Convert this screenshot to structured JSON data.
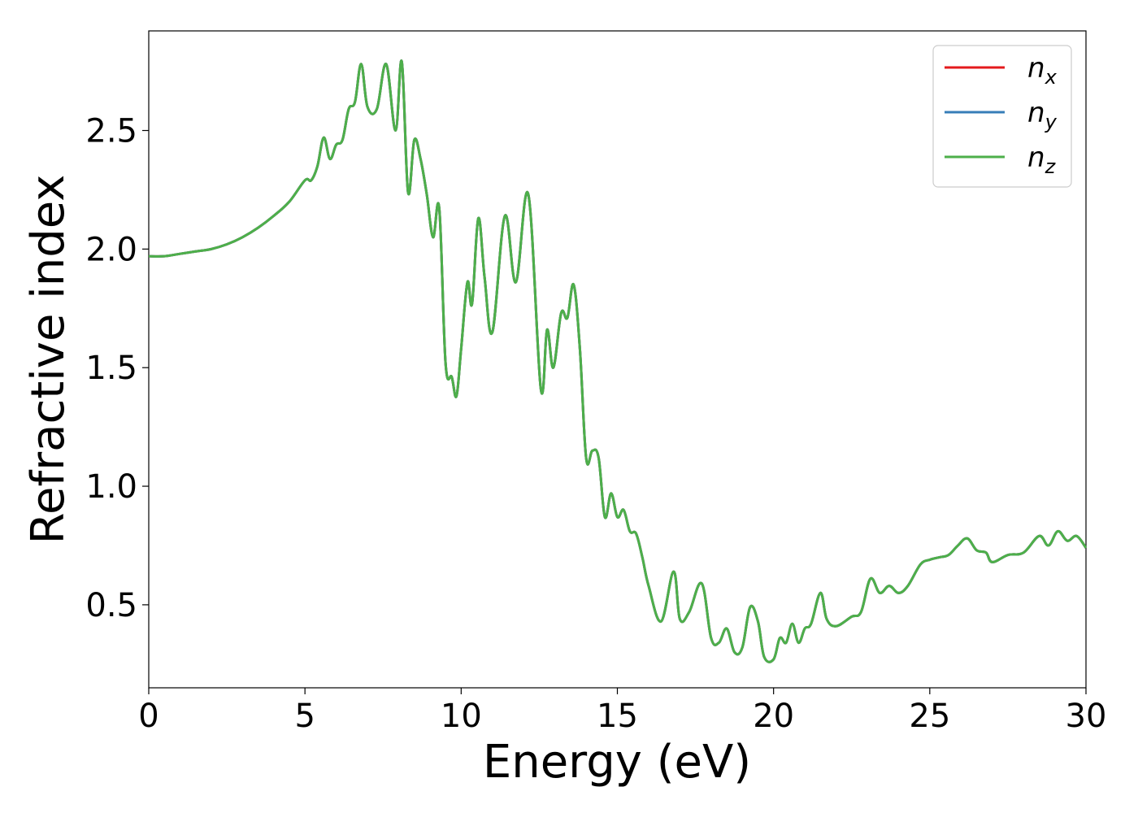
{
  "chart_data": {
    "type": "line",
    "xlabel": "Energy (eV)",
    "ylabel": "Refractive index",
    "xlim": [
      0,
      30
    ],
    "ylim": [
      0.15,
      2.92
    ],
    "xticks": [
      0,
      5,
      10,
      15,
      20,
      25,
      30
    ],
    "xtick_labels": [
      "0",
      "5",
      "10",
      "15",
      "20",
      "25",
      "30"
    ],
    "yticks": [
      0.5,
      1.0,
      1.5,
      2.0,
      2.5
    ],
    "ytick_labels": [
      "0.5",
      "1.0",
      "1.5",
      "2.0",
      "2.5"
    ],
    "grid": false,
    "legend_position": "top-right",
    "series": [
      {
        "name": "x",
        "symbol": "n",
        "color": "#e41a1c"
      },
      {
        "name": "y",
        "symbol": "n",
        "color": "#377eb8"
      },
      {
        "name": "z",
        "symbol": "n",
        "color": "#4daf4a"
      }
    ],
    "x": [
      0,
      0.5,
      1,
      1.5,
      2,
      2.5,
      3,
      3.5,
      4,
      4.5,
      5,
      5.2,
      5.4,
      5.6,
      5.8,
      6.0,
      6.2,
      6.4,
      6.6,
      6.8,
      7.0,
      7.3,
      7.6,
      7.9,
      8.1,
      8.3,
      8.5,
      8.7,
      8.9,
      9.1,
      9.3,
      9.5,
      9.7,
      9.85,
      10.0,
      10.2,
      10.35,
      10.55,
      10.75,
      11.0,
      11.4,
      11.75,
      12.15,
      12.55,
      12.75,
      12.95,
      13.2,
      13.4,
      13.6,
      13.8,
      14.0,
      14.2,
      14.4,
      14.6,
      14.8,
      15.0,
      15.2,
      15.4,
      15.6,
      15.8,
      16.0,
      16.4,
      16.8,
      17.0,
      17.3,
      17.7,
      18.0,
      18.25,
      18.5,
      18.75,
      19.0,
      19.25,
      19.5,
      19.7,
      20.0,
      20.2,
      20.4,
      20.6,
      20.8,
      21.0,
      21.2,
      21.5,
      21.7,
      22.0,
      22.5,
      22.8,
      23.1,
      23.4,
      23.7,
      24.0,
      24.3,
      24.7,
      25.0,
      25.3,
      25.6,
      25.9,
      26.2,
      26.5,
      26.8,
      27.0,
      27.5,
      28.0,
      28.5,
      28.8,
      29.1,
      29.4,
      29.7,
      30.0
    ],
    "values": [
      1.97,
      1.97,
      1.98,
      1.99,
      2.0,
      2.02,
      2.05,
      2.09,
      2.14,
      2.2,
      2.29,
      2.29,
      2.35,
      2.47,
      2.38,
      2.44,
      2.46,
      2.59,
      2.62,
      2.78,
      2.6,
      2.59,
      2.78,
      2.5,
      2.79,
      2.24,
      2.46,
      2.38,
      2.23,
      2.05,
      2.17,
      1.52,
      1.46,
      1.38,
      1.58,
      1.86,
      1.77,
      2.13,
      1.88,
      1.65,
      2.14,
      1.86,
      2.23,
      1.41,
      1.66,
      1.5,
      1.73,
      1.71,
      1.85,
      1.58,
      1.12,
      1.15,
      1.12,
      0.87,
      0.97,
      0.87,
      0.9,
      0.81,
      0.8,
      0.7,
      0.58,
      0.43,
      0.64,
      0.44,
      0.47,
      0.59,
      0.36,
      0.34,
      0.4,
      0.3,
      0.32,
      0.49,
      0.43,
      0.28,
      0.27,
      0.36,
      0.34,
      0.42,
      0.34,
      0.4,
      0.42,
      0.55,
      0.44,
      0.41,
      0.45,
      0.47,
      0.61,
      0.55,
      0.58,
      0.55,
      0.58,
      0.67,
      0.69,
      0.7,
      0.71,
      0.75,
      0.78,
      0.73,
      0.72,
      0.68,
      0.71,
      0.72,
      0.79,
      0.75,
      0.81,
      0.77,
      0.79,
      0.74
    ]
  }
}
